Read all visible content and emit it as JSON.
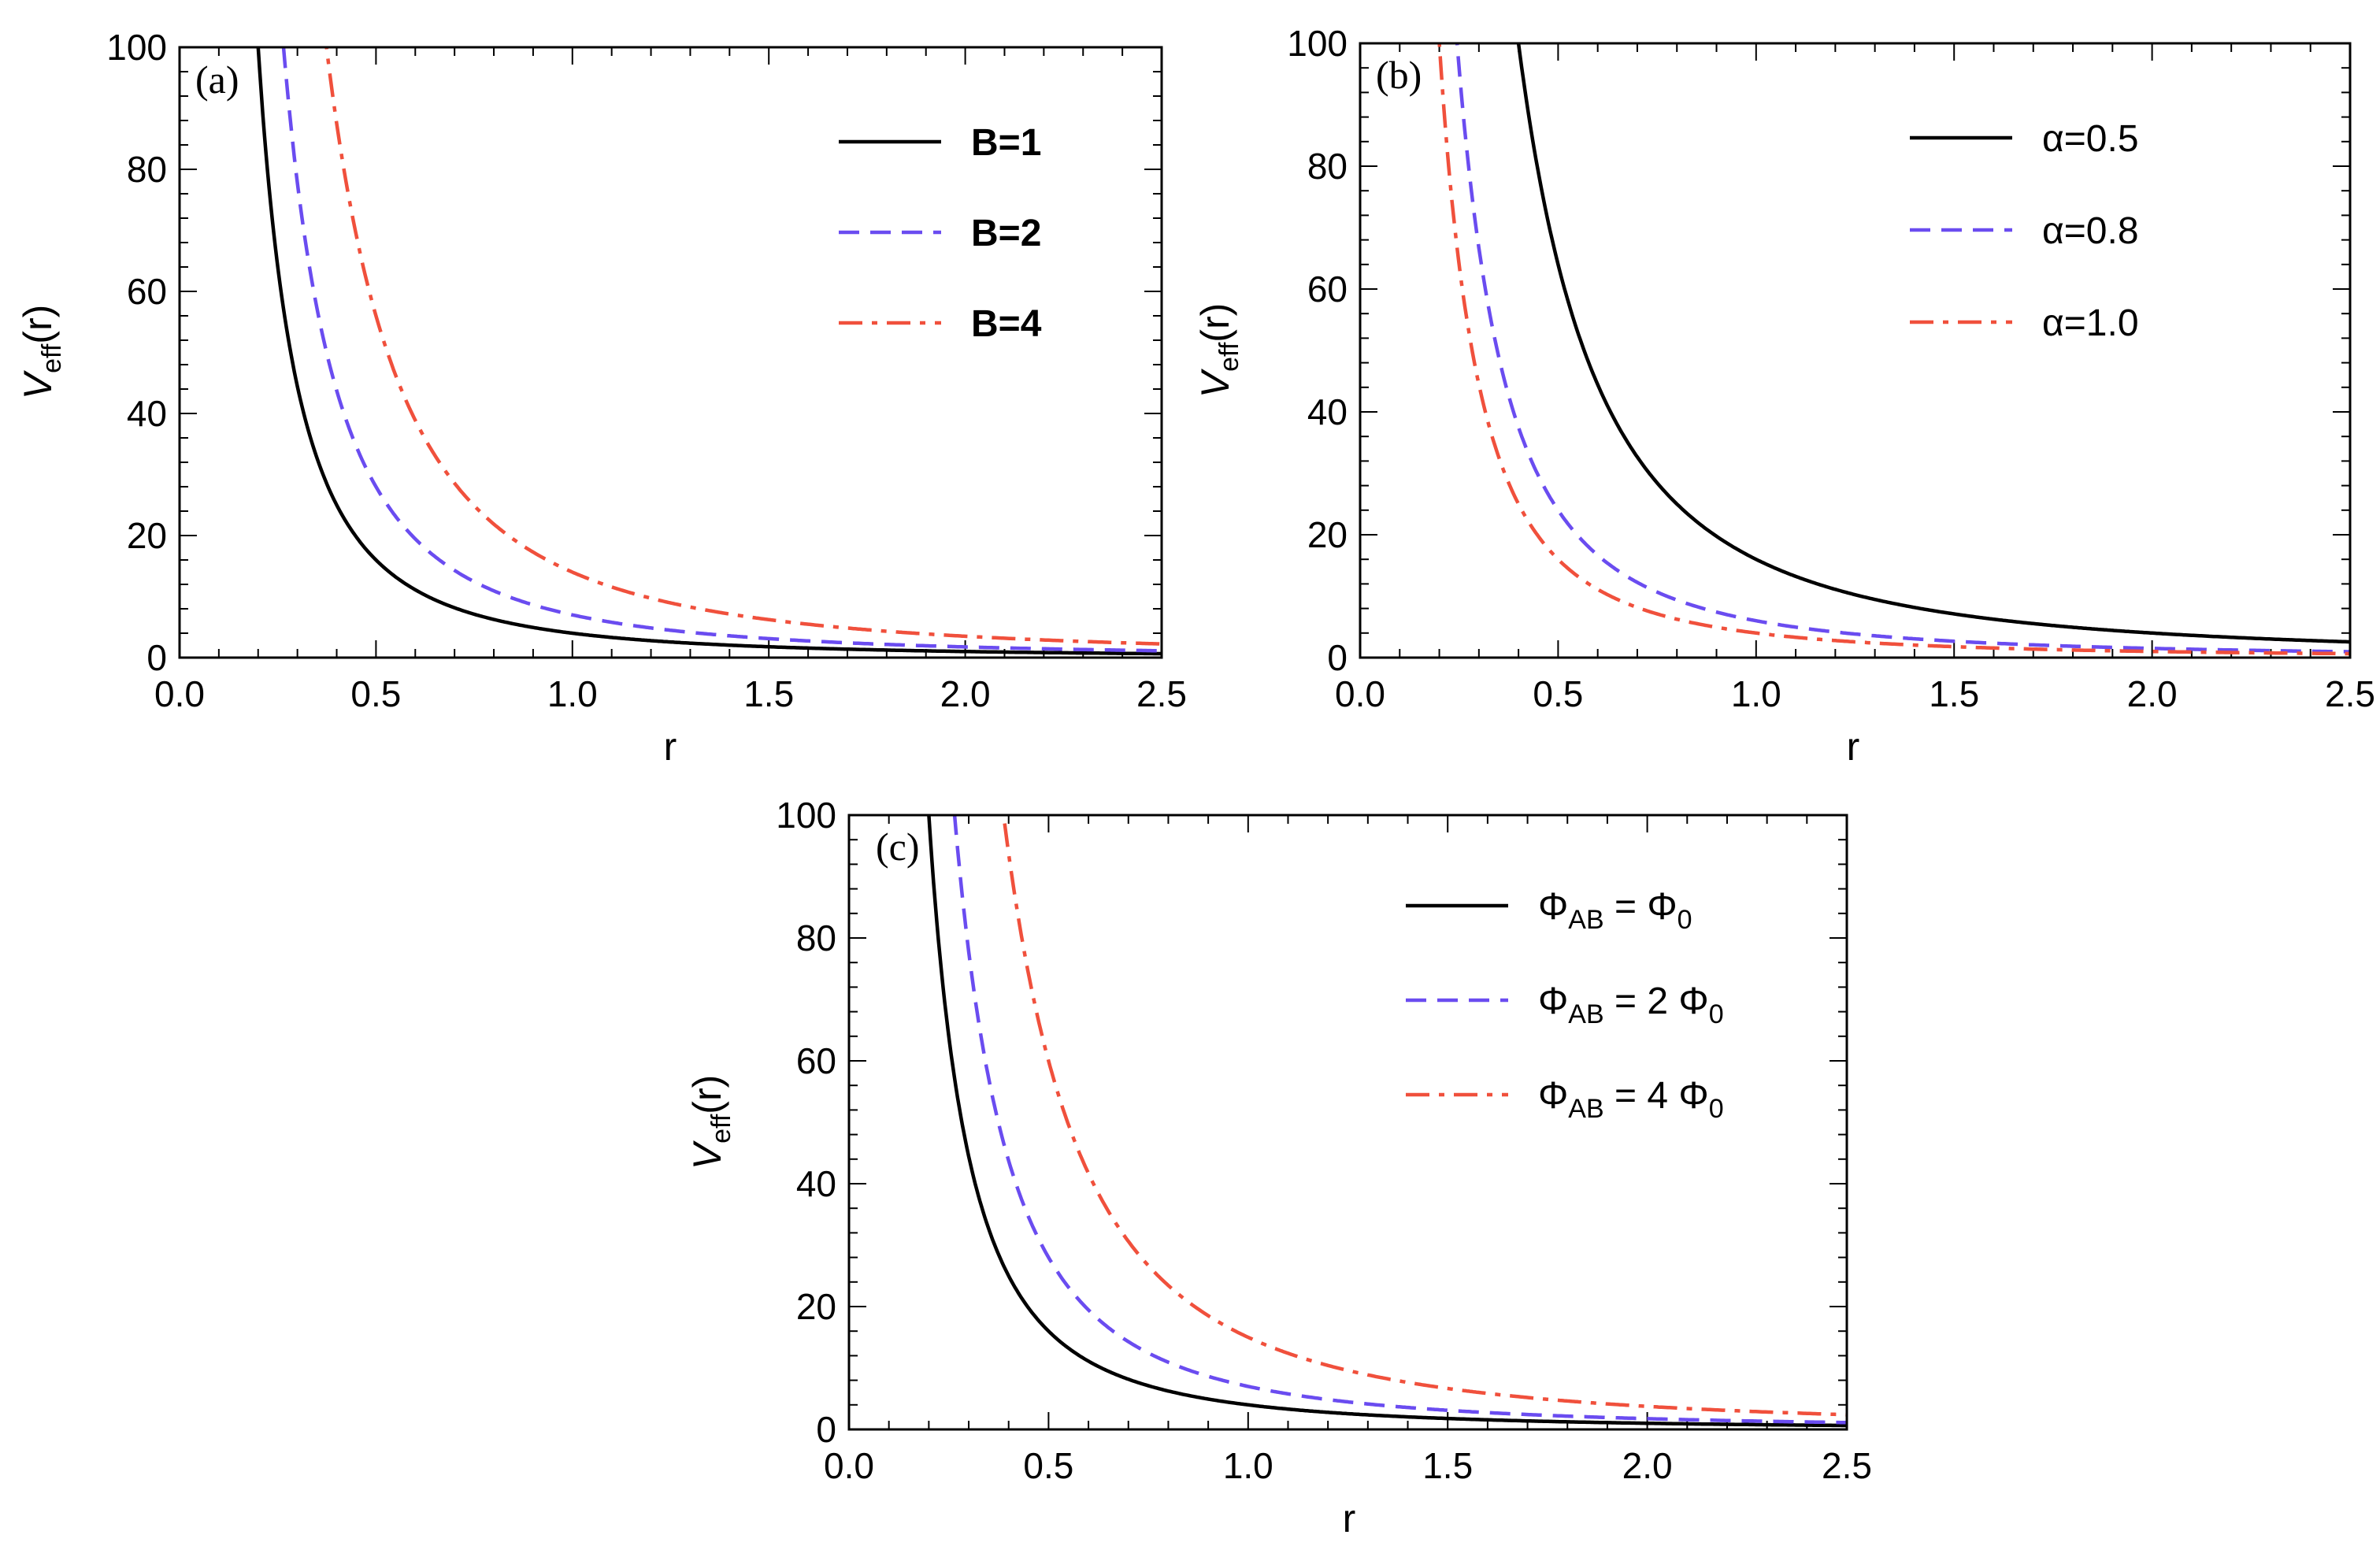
{
  "chart_data": [
    {
      "type": "line",
      "panel_label": "(a)",
      "xlabel": "r",
      "ylabel_main": "V",
      "ylabel_sub": "eff",
      "ylabel_arg": "(r)",
      "xlim": [
        0,
        2.5
      ],
      "ylim": [
        0,
        100
      ],
      "x_ticks": [
        "0.0",
        "0.5",
        "1.0",
        "1.5",
        "2.0",
        "2.5"
      ],
      "y_ticks": [
        "0",
        "20",
        "40",
        "60",
        "80",
        "100"
      ],
      "legend_bold": true,
      "series": [
        {
          "name": "B=1",
          "label_main": "B=1",
          "label_sub": "",
          "label_tail": "",
          "color": "#000000",
          "dash": "solid",
          "coef": 4.0,
          "offset": 0.0
        },
        {
          "name": "B=2",
          "label_main": "B=2",
          "label_sub": "",
          "label_tail": "",
          "color": "#6a4cf0",
          "dash": "dashed",
          "coef": 7.0,
          "offset": 0.0
        },
        {
          "name": "B=4",
          "label_main": "B=4",
          "label_sub": "",
          "label_tail": "",
          "color": "#f0503c",
          "dash": "dashdot",
          "coef": 14.0,
          "offset": 0.0
        }
      ]
    },
    {
      "type": "line",
      "panel_label": "(b)",
      "xlabel": "r",
      "ylabel_main": "V",
      "ylabel_sub": "eff",
      "ylabel_arg": "(r)",
      "xlim": [
        0,
        2.5
      ],
      "ylim": [
        0,
        100
      ],
      "x_ticks": [
        "0.0",
        "0.5",
        "1.0",
        "1.5",
        "2.0",
        "2.5"
      ],
      "y_ticks": [
        "0",
        "20",
        "40",
        "60",
        "80",
        "100"
      ],
      "legend_bold": false,
      "series": [
        {
          "name": "α=0.5",
          "label_main": "α=0.5",
          "label_sub": "",
          "label_tail": "",
          "color": "#000000",
          "dash": "solid",
          "coef": 16.0,
          "offset": 0.3
        },
        {
          "name": "α=0.8",
          "label_main": "α=0.8",
          "label_sub": "",
          "label_tail": "",
          "color": "#6a4cf0",
          "dash": "dashed",
          "coef": 6.0,
          "offset": 0.0
        },
        {
          "name": "α=1.0",
          "label_main": "α=1.0",
          "label_sub": "",
          "label_tail": "",
          "color": "#f0503c",
          "dash": "dashdot",
          "coef": 4.0,
          "offset": 0.0
        }
      ]
    },
    {
      "type": "line",
      "panel_label": "(c)",
      "xlabel": "r",
      "ylabel_main": "V",
      "ylabel_sub": "eff",
      "ylabel_arg": "(r)",
      "xlim": [
        0,
        2.5
      ],
      "ylim": [
        0,
        100
      ],
      "x_ticks": [
        "0.0",
        "0.5",
        "1.0",
        "1.5",
        "2.0",
        "2.5"
      ],
      "y_ticks": [
        "0",
        "20",
        "40",
        "60",
        "80",
        "100"
      ],
      "legend_bold": false,
      "series": [
        {
          "name": "Φ_AB = Φ_0",
          "label_main": "Φ",
          "label_sub": "AB",
          "label_tail": " = Φ",
          "label_tail_sub": "0",
          "color": "#000000",
          "dash": "solid",
          "coef": 4.0,
          "offset": 0.0
        },
        {
          "name": "Φ_AB = 2 Φ_0",
          "label_main": "Φ",
          "label_sub": "AB",
          "label_tail": " = 2 Φ",
          "label_tail_sub": "0",
          "color": "#6a4cf0",
          "dash": "dashed",
          "coef": 7.0,
          "offset": 0.0
        },
        {
          "name": "Φ_AB = 4 Φ_0",
          "label_main": "Φ",
          "label_sub": "AB",
          "label_tail": " = 4 Φ",
          "label_tail_sub": "0",
          "color": "#f0503c",
          "dash": "dashdot",
          "coef": 15.0,
          "offset": 0.3
        }
      ]
    }
  ]
}
